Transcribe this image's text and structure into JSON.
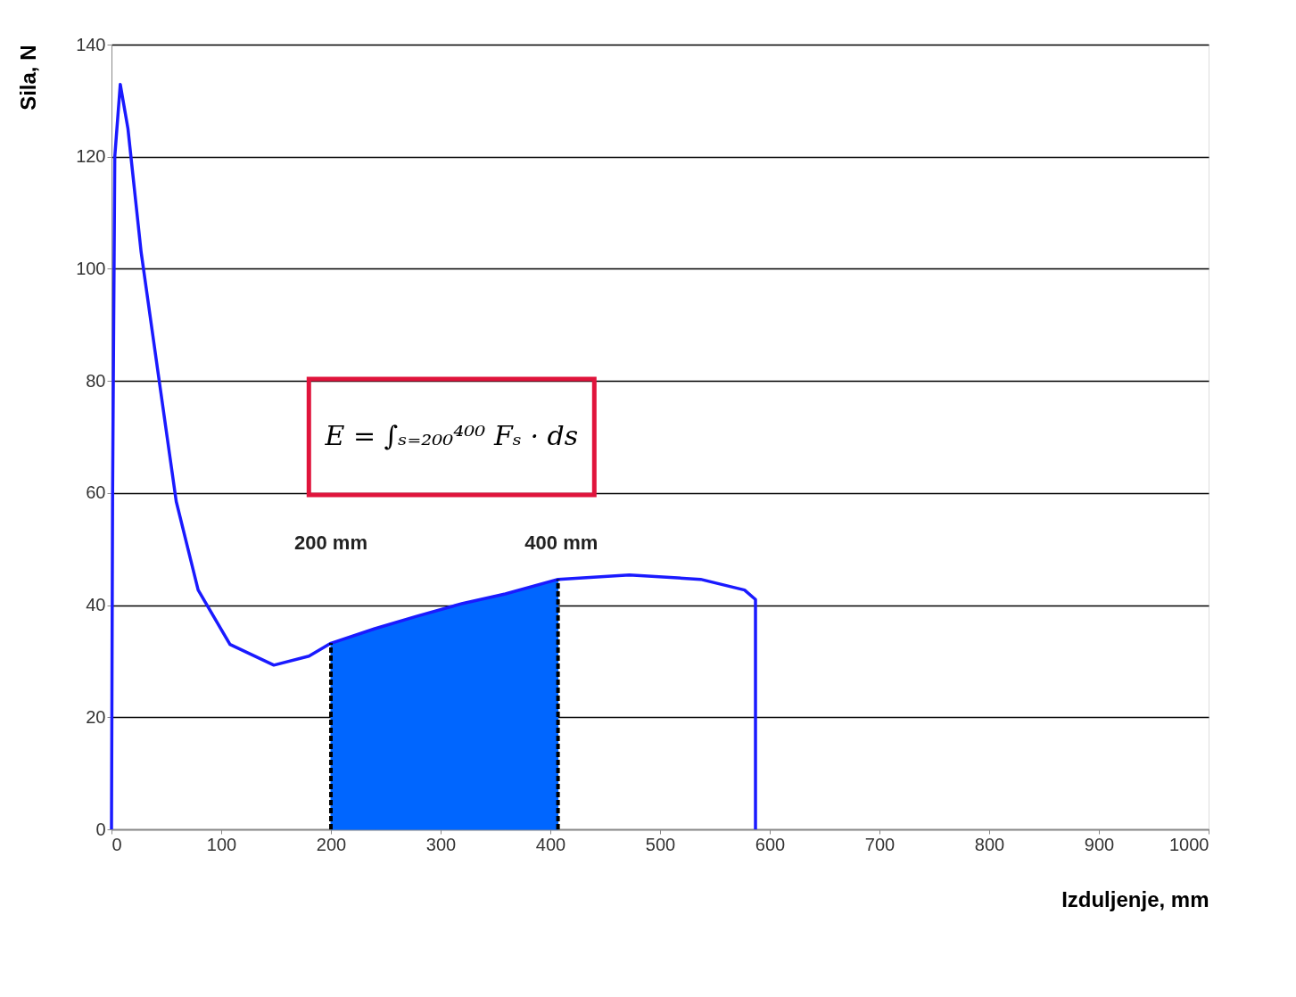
{
  "chart_data": {
    "type": "line",
    "xlabel": "Izduljenje, mm",
    "ylabel": "Sila, N",
    "xlim": [
      0,
      1000
    ],
    "xticks": [
      0,
      100,
      200,
      300,
      400,
      500,
      600,
      700,
      800,
      900,
      1000
    ],
    "ylim": [
      0,
      140
    ],
    "yticks": [
      0,
      20,
      40,
      60,
      80,
      100,
      120,
      140
    ],
    "grid": "y",
    "legend": false,
    "series": [
      {
        "type": "area",
        "color": "#0066ff",
        "x": [
          200,
          240,
          278,
          320,
          359,
          407
        ],
        "values": [
          33.2,
          35.8,
          38,
          40.3,
          42,
          44.6
        ]
      },
      {
        "type": "line",
        "color": "#1a1aff",
        "x": [
          0,
          1,
          3,
          8,
          15,
          27,
          43,
          59,
          79,
          108,
          148,
          180,
          200,
          240,
          278,
          320,
          359,
          407,
          472,
          537,
          577,
          587,
          587
        ],
        "values": [
          0,
          60,
          120,
          132.9,
          125,
          103,
          80.7,
          58.5,
          42.7,
          33,
          29.3,
          30.9,
          33.2,
          35.8,
          38,
          40.3,
          42,
          44.6,
          45.4,
          44.6,
          42.7,
          41,
          0
        ]
      },
      {
        "color": "#000000",
        "line_style": "dashed",
        "x": [
          200,
          200
        ],
        "values": [
          0,
          33.2
        ]
      },
      {
        "color": "#000000",
        "line_style": "dashed",
        "x": [
          407,
          407
        ],
        "values": [
          0,
          44.6
        ]
      }
    ],
    "annotations": [
      "E = ∫ₛ₌₂₀₀⁴⁰⁰ Fₛ · ds",
      "200 mm",
      "400 mm"
    ]
  }
}
